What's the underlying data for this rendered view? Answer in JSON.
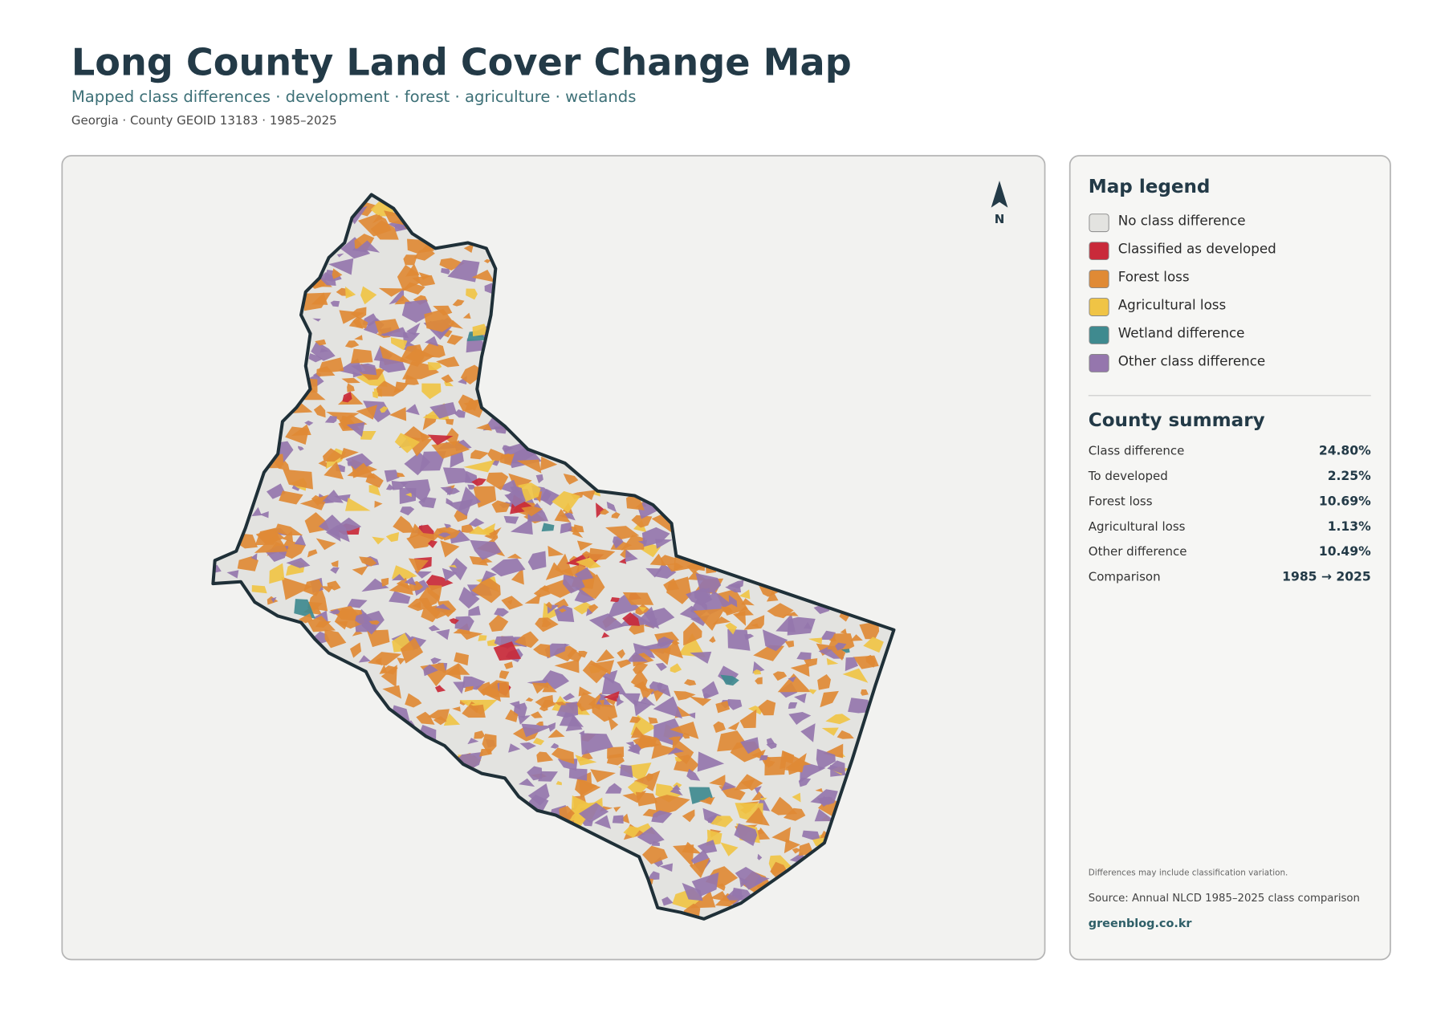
{
  "header": {
    "title": "Long County Land Cover Change Map",
    "subtitle": "Mapped class differences · development · forest · agriculture · wetlands",
    "meta": "Georgia · County GEOID 13183 · 1985–2025"
  },
  "map": {
    "north_label": "N"
  },
  "legend": {
    "title": "Map legend",
    "items": [
      {
        "label": "No class difference",
        "color": "#e3e3e0"
      },
      {
        "label": "Classified as developed",
        "color": "#c92a3a"
      },
      {
        "label": "Forest loss",
        "color": "#e08a35"
      },
      {
        "label": "Agricultural loss",
        "color": "#f0c445"
      },
      {
        "label": "Wetland difference",
        "color": "#3f8a8f"
      },
      {
        "label": "Other class difference",
        "color": "#9576ad"
      }
    ]
  },
  "summary": {
    "title": "County summary",
    "rows": [
      {
        "label": "Class difference",
        "value": "24.80%"
      },
      {
        "label": "To developed",
        "value": "2.25%"
      },
      {
        "label": "Forest loss",
        "value": "10.69%"
      },
      {
        "label": "Agricultural loss",
        "value": "1.13%"
      },
      {
        "label": "Other difference",
        "value": "10.49%"
      },
      {
        "label": "Comparison",
        "value": "1985 → 2025"
      }
    ]
  },
  "notes": {
    "caveat": "Differences may include classification variation.",
    "source": "Source: Annual NLCD 1985–2025 class comparison",
    "credit": "greenblog.co.kr"
  }
}
